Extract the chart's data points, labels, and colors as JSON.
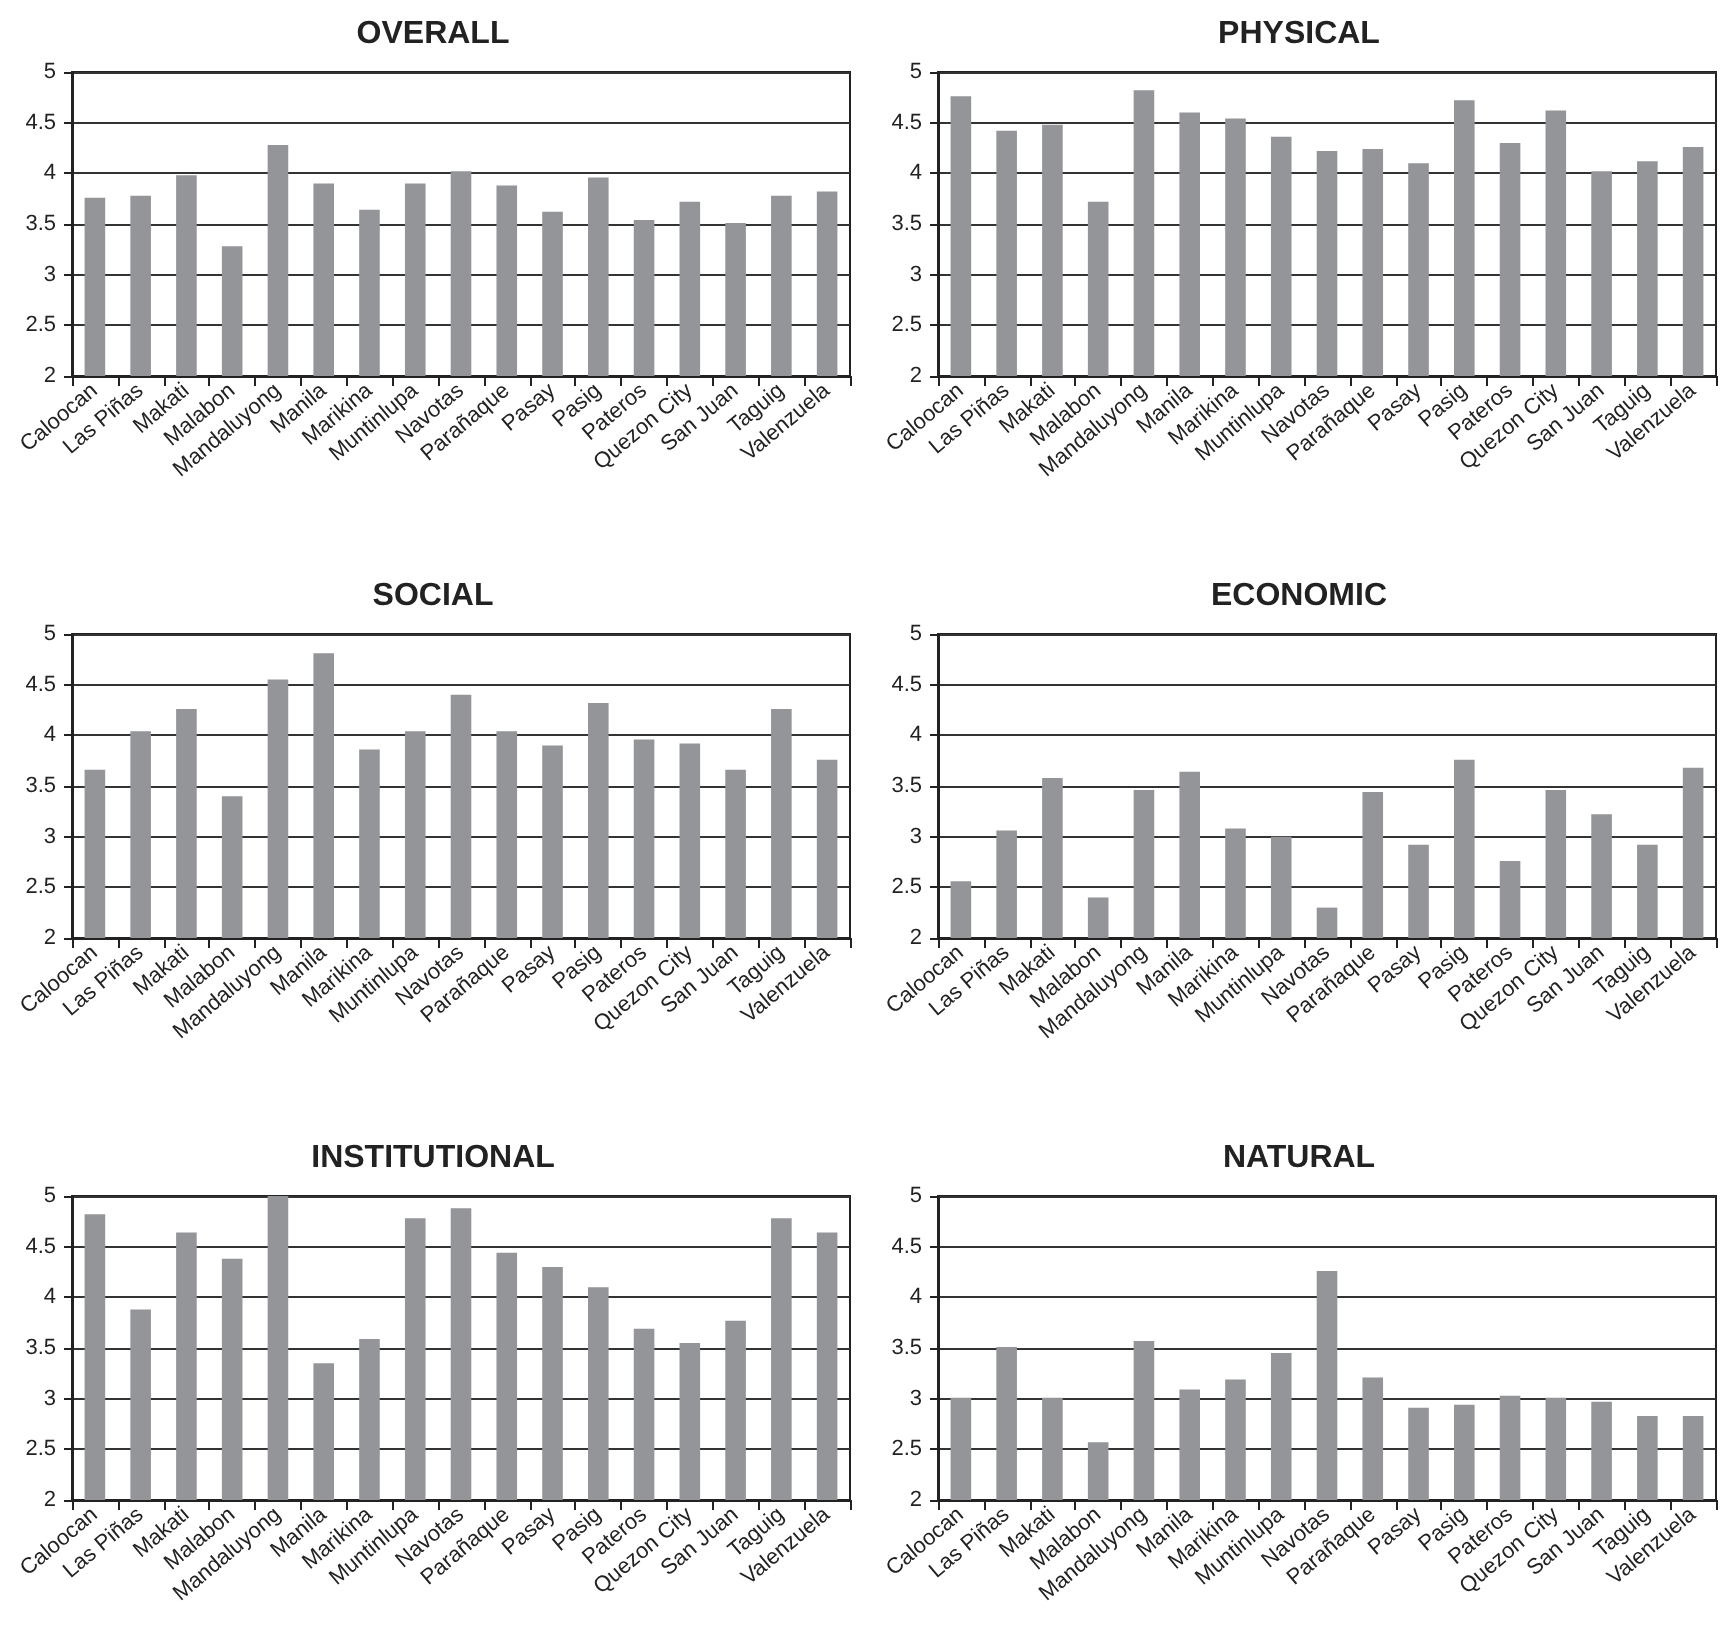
{
  "chart_data": [
    {
      "type": "bar",
      "title": "OVERALL",
      "categories": [
        "Caloocan",
        "Las Piñas",
        "Makati",
        "Malabon",
        "Mandaluyong",
        "Manila",
        "Marikina",
        "Muntinlupa",
        "Navotas",
        "Parañaque",
        "Pasay",
        "Pasig",
        "Pateros",
        "Quezon City",
        "San Juan",
        "Taguig",
        "Valenzuela"
      ],
      "values": [
        3.76,
        3.78,
        3.98,
        3.28,
        4.28,
        3.9,
        3.64,
        3.9,
        4.02,
        3.88,
        3.62,
        3.96,
        3.54,
        3.72,
        3.51,
        3.78,
        3.82
      ],
      "color": "#939598",
      "ylim": [
        2,
        5
      ],
      "yticks": [
        2,
        2.5,
        3,
        3.5,
        4,
        4.5,
        5
      ],
      "grid": "y"
    },
    {
      "type": "bar",
      "title": "PHYSICAL",
      "categories": [
        "Caloocan",
        "Las Piñas",
        "Makati",
        "Malabon",
        "Mandaluyong",
        "Manila",
        "Marikina",
        "Muntinlupa",
        "Navotas",
        "Parañaque",
        "Pasay",
        "Pasig",
        "Pateros",
        "Quezon City",
        "San Juan",
        "Taguig",
        "Valenzuela"
      ],
      "values": [
        4.76,
        4.42,
        4.48,
        3.72,
        4.82,
        4.6,
        4.54,
        4.36,
        4.22,
        4.24,
        4.1,
        4.72,
        4.3,
        4.62,
        4.02,
        4.12,
        4.26
      ],
      "color": "#939598",
      "ylim": [
        2,
        5
      ],
      "yticks": [
        2,
        2.5,
        3,
        3.5,
        4,
        4.5,
        5
      ],
      "grid": "y"
    },
    {
      "type": "bar",
      "title": "SOCIAL",
      "categories": [
        "Caloocan",
        "Las Piñas",
        "Makati",
        "Malabon",
        "Mandaluyong",
        "Manila",
        "Marikina",
        "Muntinlupa",
        "Navotas",
        "Parañaque",
        "Pasay",
        "Pasig",
        "Pateros",
        "Quezon City",
        "San Juan",
        "Taguig",
        "Valenzuela"
      ],
      "values": [
        3.66,
        4.04,
        4.26,
        3.4,
        4.55,
        4.81,
        3.86,
        4.04,
        4.4,
        4.04,
        3.9,
        4.32,
        3.96,
        3.92,
        3.66,
        4.26,
        3.76
      ],
      "color": "#939598",
      "ylim": [
        2,
        5
      ],
      "yticks": [
        2,
        2.5,
        3,
        3.5,
        4,
        4.5,
        5
      ],
      "grid": "y"
    },
    {
      "type": "bar",
      "title": "ECONOMIC",
      "categories": [
        "Caloocan",
        "Las Piñas",
        "Makati",
        "Malabon",
        "Mandaluyong",
        "Manila",
        "Marikina",
        "Muntinlupa",
        "Navotas",
        "Parañaque",
        "Pasay",
        "Pasig",
        "Pateros",
        "Quezon City",
        "San Juan",
        "Taguig",
        "Valenzuela"
      ],
      "values": [
        2.56,
        3.06,
        3.58,
        2.4,
        3.46,
        3.64,
        3.08,
        3.0,
        2.3,
        3.44,
        2.92,
        3.76,
        2.76,
        3.46,
        3.22,
        2.92,
        3.68
      ],
      "color": "#939598",
      "ylim": [
        2,
        5
      ],
      "yticks": [
        2,
        2.5,
        3,
        3.5,
        4,
        4.5,
        5
      ],
      "grid": "y"
    },
    {
      "type": "bar",
      "title": "INSTITUTIONAL",
      "categories": [
        "Caloocan",
        "Las Piñas",
        "Makati",
        "Malabon",
        "Mandaluyong",
        "Manila",
        "Marikina",
        "Muntinlupa",
        "Navotas",
        "Parañaque",
        "Pasay",
        "Pasig",
        "Pateros",
        "Quezon City",
        "San Juan",
        "Taguig",
        "Valenzuela"
      ],
      "values": [
        4.82,
        3.88,
        4.64,
        4.38,
        5.0,
        3.35,
        3.59,
        4.78,
        4.88,
        4.44,
        4.3,
        4.1,
        3.69,
        3.55,
        3.77,
        4.78,
        4.64
      ],
      "color": "#939598",
      "ylim": [
        2,
        5
      ],
      "yticks": [
        2,
        2.5,
        3,
        3.5,
        4,
        4.5,
        5
      ],
      "grid": "y"
    },
    {
      "type": "bar",
      "title": "NATURAL",
      "categories": [
        "Caloocan",
        "Las Piñas",
        "Makati",
        "Malabon",
        "Mandaluyong",
        "Manila",
        "Marikina",
        "Muntinlupa",
        "Navotas",
        "Parañaque",
        "Pasay",
        "Pasig",
        "Pateros",
        "Quezon City",
        "San Juan",
        "Taguig",
        "Valenzuela"
      ],
      "values": [
        3.01,
        3.51,
        3.01,
        2.57,
        3.57,
        3.09,
        3.19,
        3.45,
        4.26,
        3.21,
        2.91,
        2.94,
        3.03,
        3.01,
        2.97,
        2.83,
        2.83
      ],
      "color": "#939598",
      "ylim": [
        2,
        5
      ],
      "yticks": [
        2,
        2.5,
        3,
        3.5,
        4,
        4.5,
        5
      ],
      "grid": "y"
    }
  ]
}
